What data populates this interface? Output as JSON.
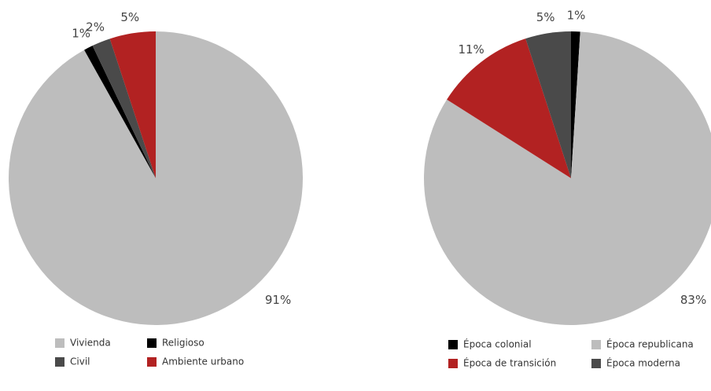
{
  "chart_data": [
    {
      "type": "pie",
      "categories": [
        "Vivienda",
        "Religioso",
        "Civil",
        "Ambiente urbano"
      ],
      "values": [
        91,
        1,
        2,
        5
      ],
      "value_labels": [
        "91%",
        "1%",
        "2%",
        "5%"
      ],
      "colors": [
        "#bdbdbd",
        "#000000",
        "#4a4a4a",
        "#b22222"
      ]
    },
    {
      "type": "pie",
      "categories": [
        "Época colonial",
        "Época republicana",
        "Época de transición",
        "Época moderna"
      ],
      "values": [
        1,
        83,
        11,
        5
      ],
      "value_labels": [
        "1%",
        "83%",
        "11%",
        "5%"
      ],
      "colors": [
        "#000000",
        "#bdbdbd",
        "#b22222",
        "#4a4a4a"
      ]
    }
  ]
}
